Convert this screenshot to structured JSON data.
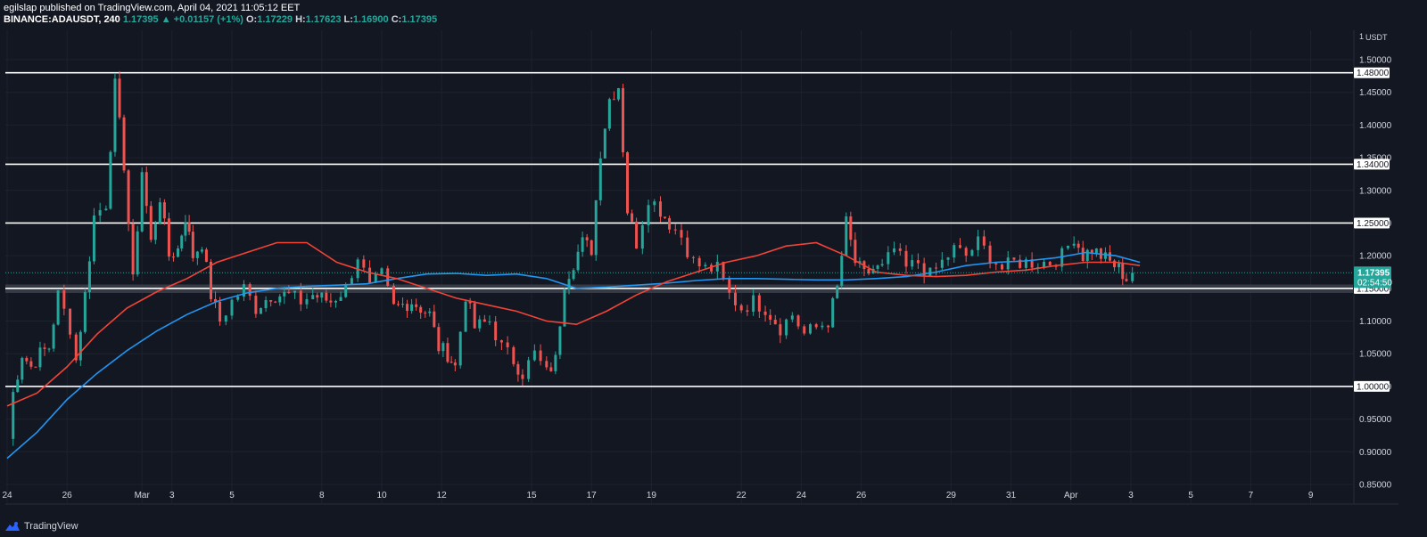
{
  "header": {
    "publisher": "egilslap published on TradingView.com, April 04, 2021 11:05:12 EET",
    "symbol": "BINANCE:ADAUSDT, 240",
    "last": "1.17395",
    "arrow": "▲",
    "change": "+0.01157 (+1%)",
    "o_label": "O:",
    "o_value": "1.17229",
    "h_label": "H:",
    "h_value": "1.17623",
    "l_label": "L:",
    "l_value": "1.16900",
    "c_label": "C:",
    "c_value": "1.17395"
  },
  "footer": {
    "brand": "TradingView",
    "logo_icon": "tradingview-logo-icon"
  },
  "colors": {
    "background": "#131722",
    "grid": "#1e222d",
    "up": "#26a69a",
    "down": "#ef5350",
    "ma_blue": "#2196f3",
    "ma_red": "#f44336",
    "text": "#d1d4dc"
  },
  "chart_data": {
    "type": "candlestick",
    "currency": "USDT",
    "y_unit_tick": "1",
    "y_ticks": [
      "0.85000",
      "0.90000",
      "0.95000",
      "1.00000",
      "1.05000",
      "1.10000",
      "1.15000",
      "1.20000",
      "1.25000",
      "1.30000",
      "1.35000",
      "1.40000",
      "1.45000",
      "1.50000"
    ],
    "ylim": [
      0.82,
      1.545
    ],
    "x_labels": [
      {
        "t": 0,
        "label": "24"
      },
      {
        "t": 2,
        "label": "26"
      },
      {
        "t": 4.5,
        "label": "Mar"
      },
      {
        "t": 5.5,
        "label": "3"
      },
      {
        "t": 7.5,
        "label": "5"
      },
      {
        "t": 10.5,
        "label": "8"
      },
      {
        "t": 12.5,
        "label": "10"
      },
      {
        "t": 14.5,
        "label": "12"
      },
      {
        "t": 17.5,
        "label": "15"
      },
      {
        "t": 19.5,
        "label": "17"
      },
      {
        "t": 21.5,
        "label": "19"
      },
      {
        "t": 24.5,
        "label": "22"
      },
      {
        "t": 26.5,
        "label": "24"
      },
      {
        "t": 28.5,
        "label": "26"
      },
      {
        "t": 31.5,
        "label": "29"
      },
      {
        "t": 33.5,
        "label": "31"
      },
      {
        "t": 35.5,
        "label": "Apr"
      },
      {
        "t": 37.5,
        "label": "3"
      },
      {
        "t": 39.5,
        "label": "5"
      },
      {
        "t": 41.5,
        "label": "7"
      },
      {
        "t": 43.5,
        "label": "9"
      }
    ],
    "horizontal_levels": [
      {
        "value": 1.48,
        "label": "1.48000"
      },
      {
        "value": 1.34,
        "label": "1.34000"
      },
      {
        "value": 1.25,
        "label": "1.25000"
      },
      {
        "value": 1.15,
        "label": "1.15000"
      },
      {
        "value": 1.0,
        "label": "1.00000"
      }
    ],
    "support_zone": [
      1.143,
      1.156
    ],
    "last_price": {
      "value": 1.17395,
      "label": "1.17395",
      "countdown": "02:54:50"
    },
    "anchors": [
      [
        0,
        0.92
      ],
      [
        0.2,
        0.99
      ],
      [
        0.5,
        1.05
      ],
      [
        0.8,
        1.03
      ],
      [
        1.1,
        1.05
      ],
      [
        1.4,
        1.06
      ],
      [
        1.7,
        1.14
      ],
      [
        2.1,
        1.09
      ],
      [
        2.3,
        1.04
      ],
      [
        2.6,
        1.14
      ],
      [
        2.9,
        1.26
      ],
      [
        3.3,
        1.28
      ],
      [
        3.6,
        1.46
      ],
      [
        3.9,
        1.34
      ],
      [
        4.2,
        1.16
      ],
      [
        4.5,
        1.33
      ],
      [
        4.8,
        1.22
      ],
      [
        5.1,
        1.29
      ],
      [
        5.4,
        1.2
      ],
      [
        5.7,
        1.21
      ],
      [
        5.95,
        1.26
      ],
      [
        6.2,
        1.2
      ],
      [
        6.5,
        1.22
      ],
      [
        6.8,
        1.14
      ],
      [
        7.1,
        1.1
      ],
      [
        7.5,
        1.13
      ],
      [
        7.9,
        1.15
      ],
      [
        8.3,
        1.12
      ],
      [
        8.8,
        1.14
      ],
      [
        9.4,
        1.14
      ],
      [
        9.8,
        1.13
      ],
      [
        10.2,
        1.14
      ],
      [
        10.8,
        1.13
      ],
      [
        11.3,
        1.15
      ],
      [
        11.7,
        1.2
      ],
      [
        12.1,
        1.15
      ],
      [
        12.5,
        1.17
      ],
      [
        12.9,
        1.12
      ],
      [
        13.5,
        1.13
      ],
      [
        14.1,
        1.11
      ],
      [
        14.4,
        1.06
      ],
      [
        14.7,
        1.05
      ],
      [
        14.95,
        1.03
      ],
      [
        15.3,
        1.14
      ],
      [
        15.6,
        1.09
      ],
      [
        16.1,
        1.1
      ],
      [
        16.5,
        1.06
      ],
      [
        16.9,
        1.04
      ],
      [
        17.2,
        1.02
      ],
      [
        17.6,
        1.05
      ],
      [
        18.0,
        1.02
      ],
      [
        18.3,
        1.04
      ],
      [
        18.6,
        1.16
      ],
      [
        18.9,
        1.19
      ],
      [
        19.2,
        1.22
      ],
      [
        19.5,
        1.21
      ],
      [
        19.8,
        1.36
      ],
      [
        20.1,
        1.44
      ],
      [
        20.4,
        1.46
      ],
      [
        20.7,
        1.27
      ],
      [
        21.0,
        1.22
      ],
      [
        21.4,
        1.29
      ],
      [
        21.8,
        1.27
      ],
      [
        22.1,
        1.25
      ],
      [
        22.5,
        1.23
      ],
      [
        22.9,
        1.19
      ],
      [
        23.3,
        1.18
      ],
      [
        23.7,
        1.18
      ],
      [
        24.1,
        1.14
      ],
      [
        24.5,
        1.12
      ],
      [
        24.9,
        1.13
      ],
      [
        25.3,
        1.12
      ],
      [
        25.8,
        1.09
      ],
      [
        26.2,
        1.11
      ],
      [
        26.6,
        1.08
      ],
      [
        27.0,
        1.09
      ],
      [
        27.4,
        1.1
      ],
      [
        27.7,
        1.15
      ],
      [
        28.0,
        1.25
      ],
      [
        28.3,
        1.19
      ],
      [
        28.6,
        1.17
      ],
      [
        28.9,
        1.18
      ],
      [
        29.2,
        1.18
      ],
      [
        29.6,
        1.21
      ],
      [
        30.0,
        1.18
      ],
      [
        30.4,
        1.19
      ],
      [
        30.8,
        1.17
      ],
      [
        31.2,
        1.19
      ],
      [
        31.6,
        1.21
      ],
      [
        32.0,
        1.2
      ],
      [
        32.4,
        1.22
      ],
      [
        32.8,
        1.2
      ],
      [
        33.2,
        1.18
      ],
      [
        33.6,
        1.19
      ],
      [
        34.0,
        1.19
      ],
      [
        34.4,
        1.19
      ],
      [
        34.8,
        1.19
      ],
      [
        35.2,
        1.2
      ],
      [
        35.6,
        1.23
      ],
      [
        35.9,
        1.2
      ],
      [
        36.2,
        1.21
      ],
      [
        36.5,
        1.2
      ],
      [
        36.8,
        1.19
      ],
      [
        37.1,
        1.18
      ],
      [
        37.35,
        1.165
      ],
      [
        37.55,
        1.17395
      ]
    ],
    "series": [
      {
        "name": "MA (blue)",
        "color": "#2196f3",
        "points": [
          [
            0,
            0.89
          ],
          [
            1,
            0.93
          ],
          [
            2,
            0.98
          ],
          [
            3,
            1.02
          ],
          [
            4,
            1.055
          ],
          [
            5,
            1.085
          ],
          [
            6,
            1.11
          ],
          [
            7,
            1.13
          ],
          [
            8,
            1.143
          ],
          [
            9,
            1.15
          ],
          [
            10,
            1.153
          ],
          [
            11,
            1.155
          ],
          [
            12,
            1.157
          ],
          [
            13,
            1.165
          ],
          [
            14,
            1.172
          ],
          [
            15,
            1.173
          ],
          [
            16,
            1.17
          ],
          [
            17,
            1.172
          ],
          [
            18,
            1.165
          ],
          [
            19,
            1.15
          ],
          [
            20,
            1.152
          ],
          [
            21,
            1.155
          ],
          [
            22,
            1.158
          ],
          [
            23,
            1.162
          ],
          [
            24,
            1.165
          ],
          [
            25,
            1.165
          ],
          [
            26,
            1.164
          ],
          [
            27,
            1.163
          ],
          [
            28,
            1.163
          ],
          [
            29,
            1.165
          ],
          [
            30,
            1.168
          ],
          [
            31,
            1.175
          ],
          [
            32,
            1.185
          ],
          [
            33,
            1.19
          ],
          [
            34,
            1.192
          ],
          [
            35,
            1.197
          ],
          [
            36,
            1.205
          ],
          [
            37,
            1.2
          ],
          [
            37.8,
            1.19
          ]
        ]
      },
      {
        "name": "MA (red)",
        "color": "#f44336",
        "points": [
          [
            0,
            0.97
          ],
          [
            1,
            0.99
          ],
          [
            2,
            1.03
          ],
          [
            3,
            1.08
          ],
          [
            4,
            1.12
          ],
          [
            5,
            1.145
          ],
          [
            6,
            1.165
          ],
          [
            7,
            1.19
          ],
          [
            8,
            1.205
          ],
          [
            9,
            1.22
          ],
          [
            10,
            1.22
          ],
          [
            11,
            1.19
          ],
          [
            12,
            1.175
          ],
          [
            13,
            1.165
          ],
          [
            14,
            1.15
          ],
          [
            15,
            1.135
          ],
          [
            16,
            1.125
          ],
          [
            17,
            1.115
          ],
          [
            18,
            1.1
          ],
          [
            19,
            1.095
          ],
          [
            20,
            1.115
          ],
          [
            21,
            1.14
          ],
          [
            22,
            1.16
          ],
          [
            23,
            1.175
          ],
          [
            24,
            1.19
          ],
          [
            25,
            1.2
          ],
          [
            26,
            1.215
          ],
          [
            27,
            1.22
          ],
          [
            28,
            1.2
          ],
          [
            29,
            1.175
          ],
          [
            30,
            1.17
          ],
          [
            31,
            1.168
          ],
          [
            32,
            1.17
          ],
          [
            33,
            1.175
          ],
          [
            34,
            1.178
          ],
          [
            35,
            1.185
          ],
          [
            36,
            1.19
          ],
          [
            37,
            1.19
          ],
          [
            37.8,
            1.185
          ]
        ]
      }
    ]
  }
}
